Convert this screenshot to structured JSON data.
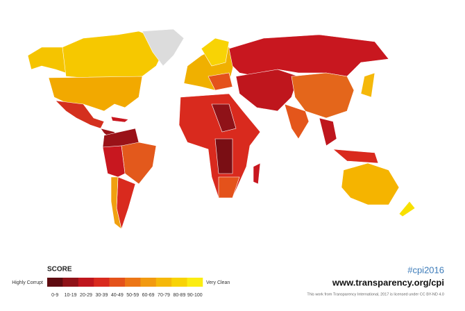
{
  "legend": {
    "title": "SCORE",
    "low_label": "Highly Corrupt",
    "high_label": "Very Clean",
    "items": [
      {
        "label": "0-9",
        "color": "#5e0b10"
      },
      {
        "label": "10-19",
        "color": "#8f1218"
      },
      {
        "label": "20-29",
        "color": "#bf161d"
      },
      {
        "label": "30-39",
        "color": "#d92a1e"
      },
      {
        "label": "40-49",
        "color": "#e4521b"
      },
      {
        "label": "50-59",
        "color": "#ec7616"
      },
      {
        "label": "60-69",
        "color": "#f29a10"
      },
      {
        "label": "70-79",
        "color": "#f5b80a"
      },
      {
        "label": "80-89",
        "color": "#f8d305"
      },
      {
        "label": "90-100",
        "color": "#fbed12"
      }
    ]
  },
  "footer": {
    "hashtag": "#cpi2016",
    "url": "www.transparency.org/cpi",
    "license": "This work from Transparency International, 2017 is licensed under CC BY-ND 4.0"
  }
}
